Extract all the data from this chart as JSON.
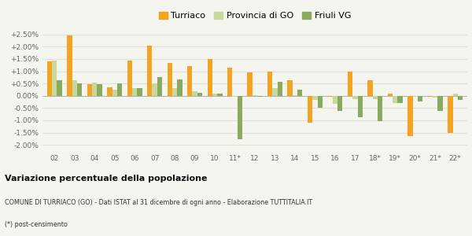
{
  "categories": [
    "02",
    "03",
    "04",
    "05",
    "06",
    "07",
    "08",
    "09",
    "10",
    "11*",
    "12",
    "13",
    "14",
    "15",
    "16",
    "17",
    "18*",
    "19*",
    "20*",
    "21*",
    "22*"
  ],
  "turriaco": [
    1.4,
    2.45,
    0.48,
    0.35,
    1.45,
    2.05,
    1.35,
    1.2,
    1.5,
    1.15,
    0.95,
    1.0,
    0.65,
    -1.1,
    -0.05,
    1.0,
    0.65,
    0.1,
    -1.65,
    -0.05,
    -1.5
  ],
  "provincia": [
    1.45,
    0.65,
    0.55,
    0.25,
    0.3,
    0.5,
    0.32,
    0.2,
    0.08,
    -0.05,
    0.02,
    0.3,
    0.02,
    -0.18,
    -0.32,
    -0.12,
    -0.12,
    -0.28,
    -0.05,
    -0.08,
    0.08
  ],
  "friuli": [
    0.65,
    0.5,
    0.48,
    0.5,
    0.32,
    0.75,
    0.68,
    0.13,
    0.1,
    -1.78,
    -0.05,
    0.58,
    0.25,
    -0.48,
    -0.62,
    -0.88,
    -1.02,
    -0.28,
    -0.22,
    -0.62,
    -0.18
  ],
  "turriaco_color": "#f4a322",
  "provincia_color": "#c8d89a",
  "friuli_color": "#8aaa62",
  "background_color": "#f5f5ef",
  "grid_color": "#e0e0d8",
  "ylim": [
    -2.25,
    2.75
  ],
  "yticks": [
    -2.0,
    -1.5,
    -1.0,
    -0.5,
    0.0,
    0.5,
    1.0,
    1.5,
    2.0,
    2.5
  ],
  "title1": "Variazione percentuale della popolazione",
  "title2": "COMUNE DI TURRIACO (GO) - Dati ISTAT al 31 dicembre di ogni anno - Elaborazione TUTTITALIA.IT",
  "title3": "(*) post-censimento",
  "legend_labels": [
    "Turriaco",
    "Provincia di GO",
    "Friuli VG"
  ]
}
